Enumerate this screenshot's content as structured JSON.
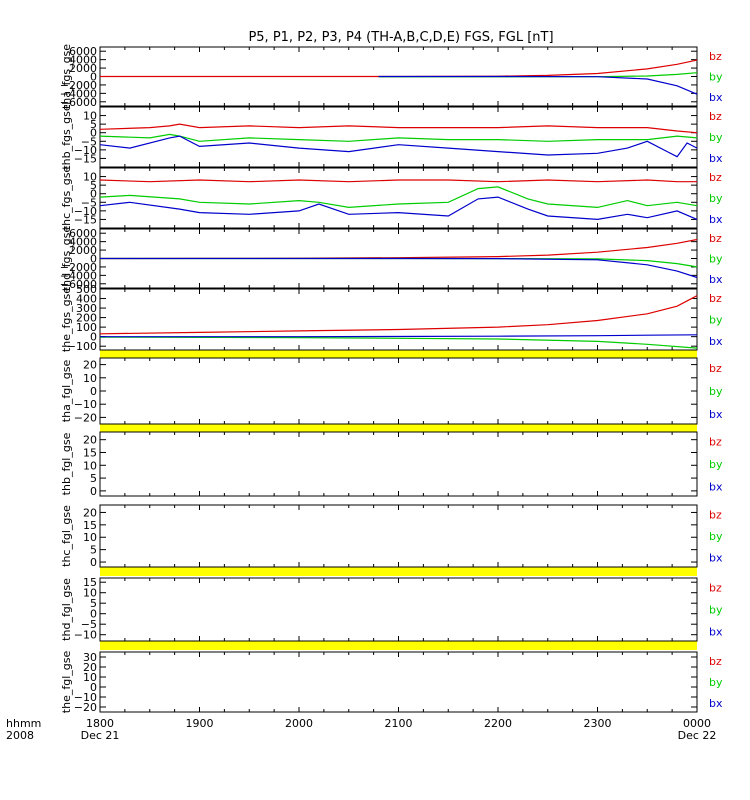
{
  "chart_data": {
    "type": "line",
    "title": "P5, P1, P2, P3, P4 (TH-A,B,C,D,E) FGS, FGL [nT]",
    "x_ticks": [
      {
        "label": "1800",
        "sub": "Dec 21"
      },
      {
        "label": "1900",
        "sub": ""
      },
      {
        "label": "2000",
        "sub": ""
      },
      {
        "label": "2100",
        "sub": ""
      },
      {
        "label": "2200",
        "sub": ""
      },
      {
        "label": "2300",
        "sub": ""
      },
      {
        "label": "0000",
        "sub": "Dec 22"
      }
    ],
    "xaxis_left_label": "hhmm",
    "xaxis_left_sub": "2008",
    "xlim": [
      0,
      6
    ],
    "series_colors": {
      "bz": "#dd0000",
      "by": "#00cc00",
      "bx": "#0000cc"
    },
    "panels": [
      {
        "ylabel": "tha_fgs_gse",
        "ylim": [
          -7000,
          7000
        ],
        "yticks": [
          6000,
          4000,
          2000,
          0,
          -2000,
          -4000,
          -6000
        ],
        "ytick_labels": [
          "6000",
          "4000",
          "2000",
          "0",
          "−2000",
          "−4000",
          "−6000"
        ],
        "legend": [
          "bz",
          "by",
          "bx"
        ],
        "series": [
          {
            "name": "bz",
            "start": 0,
            "x": [
              0,
              1,
              2,
              3,
              4,
              4.5,
              5,
              5.5,
              5.8,
              6
            ],
            "y": [
              0,
              0,
              0,
              10,
              60,
              250,
              700,
              1800,
              2900,
              3900
            ]
          },
          {
            "name": "by",
            "start": 2.8,
            "x": [
              2.8,
              4,
              5,
              5.5,
              5.8,
              6
            ],
            "y": [
              -70,
              -60,
              -40,
              120,
              500,
              900
            ]
          },
          {
            "name": "bx",
            "start": 2.8,
            "x": [
              2.8,
              4,
              5,
              5.5,
              5.8,
              6
            ],
            "y": [
              0,
              0,
              -40,
              -600,
              -2200,
              -4200
            ]
          }
        ]
      },
      {
        "ylabel": "thb_fgs_gse",
        "ylim": [
          -20,
          15
        ],
        "yticks": [
          10,
          5,
          0,
          -5,
          -10,
          -15
        ],
        "ytick_labels": [
          "10",
          "5",
          "0",
          "−5",
          "−10",
          "−15"
        ],
        "legend": [
          "bz",
          "by",
          "bx"
        ],
        "series": [
          {
            "name": "bz",
            "x": [
              0,
              0.5,
              0.7,
              0.8,
              1,
              1.5,
              2,
              2.5,
              3,
              3.5,
              4,
              4.5,
              5,
              5.5,
              5.8,
              6
            ],
            "y": [
              2,
              3,
              4,
              5,
              3,
              4,
              3,
              4,
              3,
              3,
              3,
              4,
              3,
              3,
              1,
              0
            ]
          },
          {
            "name": "by",
            "x": [
              0,
              0.5,
              0.7,
              0.8,
              1,
              1.5,
              2,
              2.5,
              3,
              3.5,
              4,
              4.5,
              5,
              5.5,
              5.8,
              6
            ],
            "y": [
              -2,
              -3,
              -1,
              -2,
              -5,
              -3,
              -4,
              -5,
              -3,
              -4,
              -4,
              -5,
              -4,
              -4,
              -2,
              -3
            ]
          },
          {
            "name": "bx",
            "x": [
              0,
              0.3,
              0.7,
              0.8,
              1,
              1.5,
              2,
              2.5,
              3,
              3.5,
              4,
              4.5,
              5,
              5.3,
              5.5,
              5.7,
              5.8,
              5.9,
              6
            ],
            "y": [
              -7,
              -9,
              -3,
              -2,
              -8,
              -6,
              -9,
              -11,
              -7,
              -9,
              -11,
              -13,
              -12,
              -9,
              -5,
              -11,
              -14,
              -6,
              -9
            ]
          }
        ]
      },
      {
        "ylabel": "thc_fgs_gse",
        "ylim": [
          -20,
          15
        ],
        "yticks": [
          10,
          5,
          0,
          -5,
          -10,
          -15
        ],
        "ytick_labels": [
          "10",
          "5",
          "0",
          "−5",
          "−10",
          "−15"
        ],
        "legend": [
          "bz",
          "by",
          "bx"
        ],
        "series": [
          {
            "name": "bz",
            "x": [
              0,
              0.5,
              1,
              1.5,
              2,
              2.5,
              3,
              3.5,
              4,
              4.5,
              5,
              5.5,
              5.8,
              6
            ],
            "y": [
              8,
              7,
              8,
              7,
              8,
              7,
              8,
              8,
              7,
              8,
              7,
              8,
              7,
              7
            ]
          },
          {
            "name": "by",
            "x": [
              0,
              0.3,
              0.8,
              1,
              1.5,
              2,
              2.2,
              2.5,
              3,
              3.5,
              3.8,
              4,
              4.3,
              4.5,
              5,
              5.3,
              5.5,
              5.8,
              6
            ],
            "y": [
              -2,
              -1,
              -3,
              -5,
              -6,
              -4,
              -5,
              -8,
              -6,
              -5,
              3,
              4,
              -3,
              -6,
              -8,
              -4,
              -7,
              -5,
              -7
            ]
          },
          {
            "name": "bx",
            "x": [
              0,
              0.3,
              0.8,
              1,
              1.5,
              2,
              2.2,
              2.5,
              3,
              3.5,
              3.8,
              4,
              4.3,
              4.5,
              5,
              5.3,
              5.5,
              5.8,
              6
            ],
            "y": [
              -7,
              -5,
              -9,
              -11,
              -12,
              -10,
              -6,
              -12,
              -11,
              -13,
              -3,
              -2,
              -9,
              -13,
              -15,
              -12,
              -14,
              -10,
              -15
            ]
          }
        ]
      },
      {
        "ylabel": "thd_fgs_gse",
        "ylim": [
          -7000,
          7000
        ],
        "yticks": [
          6000,
          4000,
          2000,
          0,
          -2000,
          -4000,
          -6000
        ],
        "ytick_labels": [
          "6000",
          "4000",
          "2000",
          "0",
          "−2000",
          "−4000",
          "−6000"
        ],
        "legend": [
          "bz",
          "by",
          "bx"
        ],
        "series": [
          {
            "name": "bz",
            "x": [
              0,
              1,
              2,
              3,
              4,
              4.5,
              5,
              5.5,
              5.8,
              6
            ],
            "y": [
              0,
              20,
              80,
              200,
              450,
              800,
              1500,
              2600,
              3600,
              4500
            ]
          },
          {
            "name": "by",
            "x": [
              0,
              3,
              4,
              5,
              5.5,
              5.8,
              6
            ],
            "y": [
              0,
              0,
              -20,
              -100,
              -500,
              -1200,
              -2000
            ]
          },
          {
            "name": "bx",
            "x": [
              0,
              3,
              4,
              5,
              5.5,
              5.8,
              6
            ],
            "y": [
              0,
              0,
              -30,
              -300,
              -1500,
              -3000,
              -4500
            ]
          }
        ]
      },
      {
        "ylabel": "the_fgs_gse",
        "ylim": [
          -140,
          500
        ],
        "yticks": [
          500,
          400,
          300,
          200,
          100,
          0,
          -100
        ],
        "ytick_labels": [
          "500",
          "400",
          "300",
          "200",
          "100",
          "0",
          "−100"
        ],
        "legend": [
          "bz",
          "by",
          "bx"
        ],
        "series": [
          {
            "name": "bz",
            "x": [
              0,
              1,
              2,
              3,
              4,
              4.5,
              5,
              5.5,
              5.8,
              6
            ],
            "y": [
              30,
              45,
              60,
              75,
              100,
              125,
              170,
              240,
              320,
              430
            ]
          },
          {
            "name": "by",
            "x": [
              0,
              2,
              4,
              5,
              5.5,
              6
            ],
            "y": [
              -5,
              -10,
              -25,
              -50,
              -80,
              -120
            ]
          },
          {
            "name": "bx",
            "x": [
              0,
              2,
              4,
              5,
              5.5,
              6
            ],
            "y": [
              0,
              0,
              5,
              10,
              15,
              20
            ]
          }
        ]
      },
      {
        "ylabel": "tha_fgl_gse",
        "ylim": [
          -25,
          25
        ],
        "yticks": [
          20,
          10,
          0,
          -10,
          -20
        ],
        "ytick_labels": [
          "20",
          "10",
          "0",
          "−10",
          "−20"
        ],
        "legend": [
          "bz",
          "by",
          "bx"
        ],
        "series": []
      },
      {
        "ylabel": "thb_fgl_gse",
        "ylim": [
          -2,
          23
        ],
        "yticks": [
          20,
          15,
          10,
          5,
          0
        ],
        "ytick_labels": [
          "20",
          "15",
          "10",
          "5",
          "0"
        ],
        "legend": [
          "bz",
          "by",
          "bx"
        ],
        "series": []
      },
      {
        "ylabel": "thc_fgl_gse",
        "ylim": [
          -2,
          23
        ],
        "yticks": [
          20,
          15,
          10,
          5,
          0
        ],
        "ytick_labels": [
          "20",
          "15",
          "10",
          "5",
          "0"
        ],
        "legend": [
          "bz",
          "by",
          "bx"
        ],
        "series": []
      },
      {
        "ylabel": "thd_fgl_gse",
        "ylim": [
          -13,
          17
        ],
        "yticks": [
          15,
          10,
          5,
          0,
          -5,
          -10
        ],
        "ytick_labels": [
          "15",
          "10",
          "5",
          "0",
          "−5",
          "−10"
        ],
        "legend": [
          "bz",
          "by",
          "bx"
        ],
        "series": []
      },
      {
        "ylabel": "the_fgl_gse",
        "ylim": [
          -25,
          35
        ],
        "yticks": [
          30,
          20,
          10,
          0,
          -10,
          -20
        ],
        "ytick_labels": [
          "30",
          "20",
          "10",
          "0",
          "−10",
          "−20"
        ],
        "legend": [
          "bz",
          "by",
          "bx"
        ],
        "series": []
      }
    ]
  }
}
